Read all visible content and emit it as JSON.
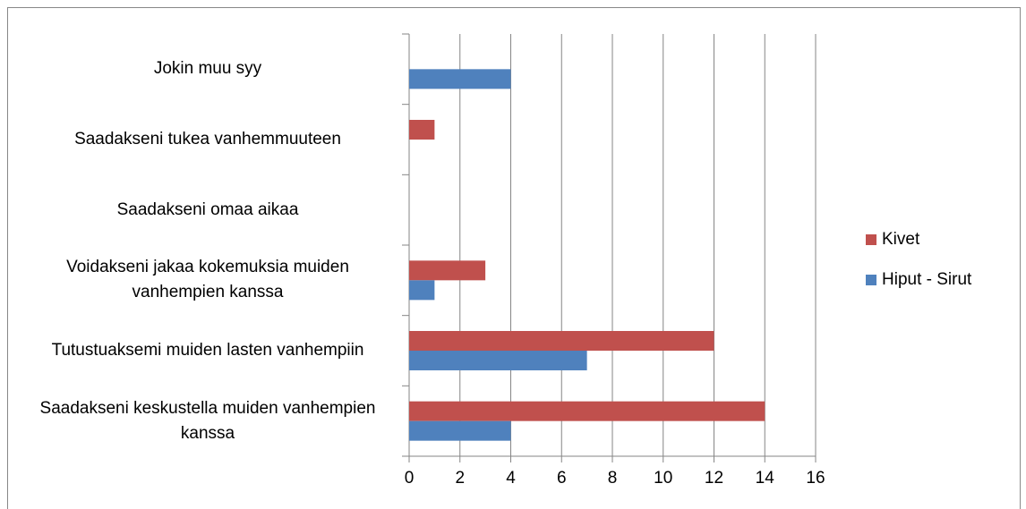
{
  "chart_data": {
    "type": "bar",
    "orientation": "horizontal",
    "categories": [
      "Jokin muu syy",
      "Saadakseni tukea vanhemmuuteen",
      "Saadakseni omaa aikaa",
      "Voidakseni jakaa kokemuksia muiden vanhempien kanssa",
      "Tutustuaksemi muiden lasten vanhempiin",
      "Saadakseni keskustella muiden vanhempien kanssa"
    ],
    "series": [
      {
        "name": "Kivet",
        "color": "#c0504d",
        "values": [
          0,
          1,
          0,
          3,
          12,
          14
        ]
      },
      {
        "name": "Hiput - Sirut",
        "color": "#4f81bd",
        "values": [
          4,
          0,
          0,
          1,
          7,
          4
        ]
      }
    ],
    "xlim": [
      0,
      16
    ],
    "xticks": [
      0,
      2,
      4,
      6,
      8,
      10,
      12,
      14,
      16
    ],
    "grid": true,
    "legend": "right"
  }
}
